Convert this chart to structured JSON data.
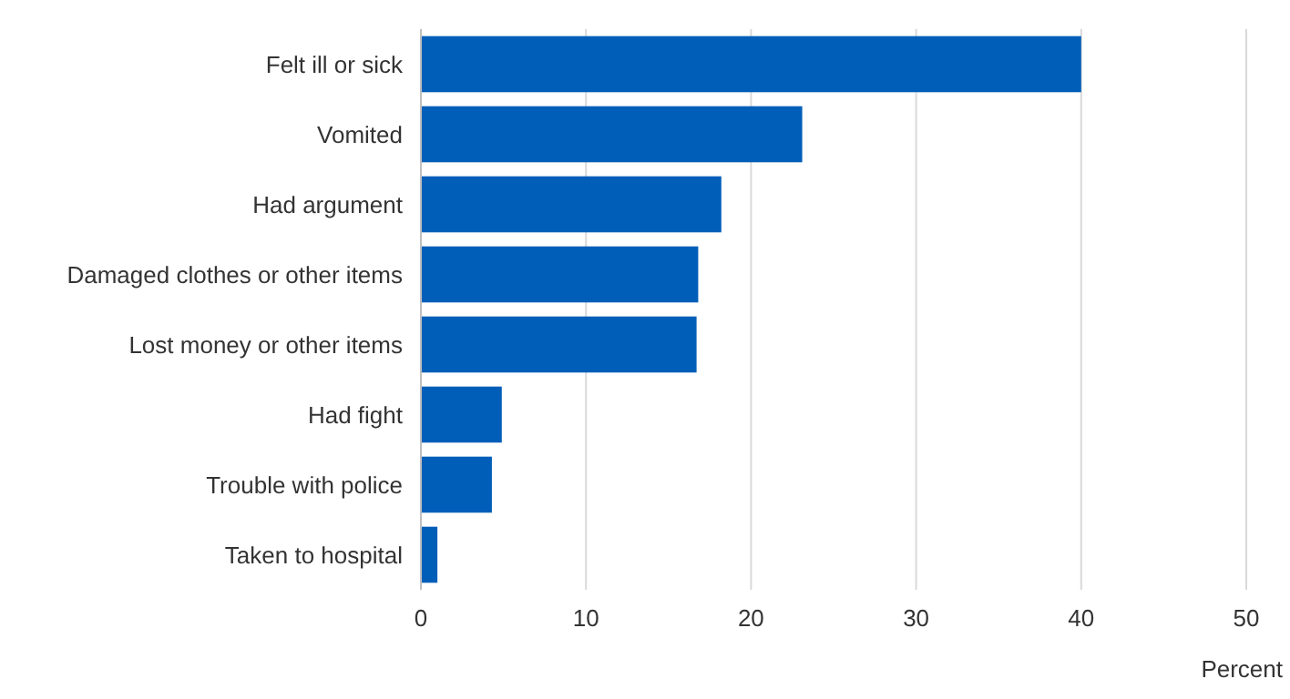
{
  "chart_data": {
    "type": "bar",
    "orientation": "horizontal",
    "categories": [
      "Felt ill or sick",
      "Vomited",
      "Had argument",
      "Damaged clothes or other items",
      "Lost money or other items",
      "Had fight",
      "Trouble with police",
      "Taken to hospital"
    ],
    "values": [
      40,
      23.1,
      18.2,
      16.8,
      16.7,
      4.9,
      4.3,
      1.0
    ],
    "color": "#005eb8",
    "xlim": [
      0,
      50
    ],
    "xticks": [
      0,
      10,
      20,
      30,
      40,
      50
    ],
    "grid": "x",
    "xlabel": "Percent"
  }
}
